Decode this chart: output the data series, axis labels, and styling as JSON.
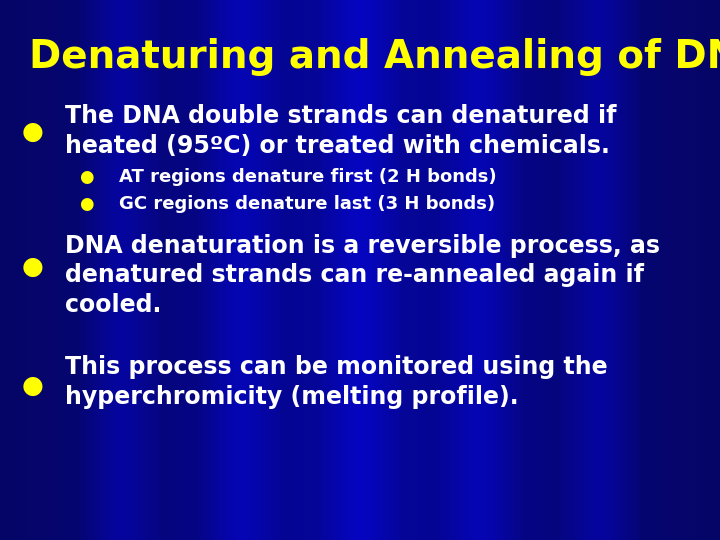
{
  "title": "Denaturing and Annealing of DNA",
  "title_color": "#FFFF00",
  "title_fontsize": 28,
  "bullet_color": "#FFFF00",
  "text_color": "#FFFFFF",
  "sub_bullet_color": "#FFFF00",
  "bullet1_line1": "The DNA double strands can denatured if",
  "bullet1_line2": "heated (95ºC) or treated with chemicals.",
  "sub1": "AT regions denature first (2 H bonds)",
  "sub2": "GC regions denature last (3 H bonds)",
  "bullet2_line1": "DNA denaturation is a reversible process, as",
  "bullet2_line2": "denatured strands can re-annealed again if",
  "bullet2_line3": "cooled.",
  "bullet3_line1": "This process can be monitored using the",
  "bullet3_line2": "hyperchromicity (melting profile).",
  "main_fontsize": 17,
  "sub_fontsize": 13
}
